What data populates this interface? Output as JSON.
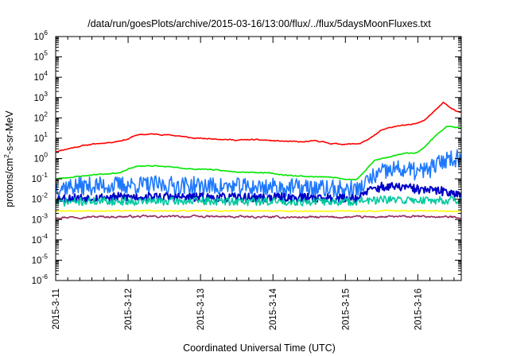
{
  "chart_data": {
    "type": "line",
    "title": "/data/run/goesPlots/archive/2015-03-16/13:00/flux/../flux/5daysMoonFluxes.txt",
    "xlabel": "Coordinated Universal Time (UTC)",
    "ylabel_parts": {
      "pre": "protons/cm",
      "sup": "2",
      "post": "-s-sr-MeV"
    },
    "yscale": "log",
    "ylim_exp": [
      -6,
      6
    ],
    "ytick_base": "10",
    "ytick_exponents": [
      "6",
      "5",
      "4",
      "3",
      "2",
      "1",
      "0",
      "-1",
      "-2",
      "-3",
      "-4",
      "-5",
      "-6"
    ],
    "xlim_days": [
      0,
      5.6
    ],
    "xticks": [
      {
        "t": 0,
        "label": "2015-3-11"
      },
      {
        "t": 1,
        "label": "2015-3-12"
      },
      {
        "t": 2,
        "label": "2015-3-13"
      },
      {
        "t": 3,
        "label": "2015-3-14"
      },
      {
        "t": 4,
        "label": "2015-3-15"
      },
      {
        "t": 5,
        "label": "2015-3-16"
      }
    ],
    "grid": false,
    "legend": "none",
    "series": [
      {
        "color": "#ff0000",
        "noise": 0.05,
        "seed": 11,
        "points": [
          [
            0,
            2.2
          ],
          [
            0.2,
            3.2
          ],
          [
            0.4,
            4.5
          ],
          [
            0.6,
            5.5
          ],
          [
            0.8,
            6.5
          ],
          [
            1.0,
            9.0
          ],
          [
            1.1,
            14
          ],
          [
            1.3,
            16
          ],
          [
            1.5,
            15
          ],
          [
            1.7,
            13
          ],
          [
            1.9,
            10
          ],
          [
            2.1,
            9.5
          ],
          [
            2.3,
            9.0
          ],
          [
            2.5,
            8.0
          ],
          [
            2.7,
            8.5
          ],
          [
            2.9,
            8.0
          ],
          [
            3.0,
            7.5
          ],
          [
            3.2,
            7.0
          ],
          [
            3.4,
            6.5
          ],
          [
            3.6,
            7.5
          ],
          [
            3.8,
            5.5
          ],
          [
            4.0,
            5.0
          ],
          [
            4.2,
            5.5
          ],
          [
            4.35,
            10
          ],
          [
            4.5,
            25
          ],
          [
            4.7,
            40
          ],
          [
            4.9,
            45
          ],
          [
            5.0,
            60
          ],
          [
            5.1,
            80
          ],
          [
            5.2,
            180
          ],
          [
            5.3,
            400
          ],
          [
            5.35,
            600
          ],
          [
            5.45,
            300
          ],
          [
            5.55,
            200
          ],
          [
            5.6,
            180
          ]
        ]
      },
      {
        "color": "#00e600",
        "noise": 0.05,
        "seed": 23,
        "points": [
          [
            0,
            0.1
          ],
          [
            0.3,
            0.13
          ],
          [
            0.6,
            0.17
          ],
          [
            0.9,
            0.2
          ],
          [
            1.0,
            0.3
          ],
          [
            1.1,
            0.4
          ],
          [
            1.3,
            0.45
          ],
          [
            1.5,
            0.4
          ],
          [
            1.7,
            0.35
          ],
          [
            1.9,
            0.3
          ],
          [
            2.1,
            0.3
          ],
          [
            2.3,
            0.25
          ],
          [
            2.6,
            0.22
          ],
          [
            2.9,
            0.2
          ],
          [
            3.2,
            0.15
          ],
          [
            3.5,
            0.13
          ],
          [
            3.8,
            0.12
          ],
          [
            4.0,
            0.1
          ],
          [
            4.15,
            0.09
          ],
          [
            4.25,
            0.2
          ],
          [
            4.4,
            0.8
          ],
          [
            4.6,
            1.2
          ],
          [
            4.8,
            1.8
          ],
          [
            5.0,
            2.0
          ],
          [
            5.1,
            4.0
          ],
          [
            5.2,
            9.0
          ],
          [
            5.3,
            20
          ],
          [
            5.4,
            40
          ],
          [
            5.5,
            35
          ],
          [
            5.6,
            30
          ]
        ]
      },
      {
        "color": "#1e78ff",
        "noise": 0.45,
        "seed": 37,
        "points": [
          [
            0,
            0.04
          ],
          [
            0.5,
            0.045
          ],
          [
            1.0,
            0.05
          ],
          [
            1.5,
            0.05
          ],
          [
            2.0,
            0.045
          ],
          [
            2.5,
            0.04
          ],
          [
            3.0,
            0.04
          ],
          [
            3.5,
            0.035
          ],
          [
            4.0,
            0.03
          ],
          [
            4.2,
            0.03
          ],
          [
            4.25,
            0.05
          ],
          [
            4.35,
            0.1
          ],
          [
            4.5,
            0.2
          ],
          [
            4.7,
            0.3
          ],
          [
            4.9,
            0.25
          ],
          [
            5.0,
            0.22
          ],
          [
            5.1,
            0.25
          ],
          [
            5.2,
            0.35
          ],
          [
            5.3,
            0.6
          ],
          [
            5.4,
            1.0
          ],
          [
            5.5,
            1.1
          ],
          [
            5.6,
            1.0
          ]
        ]
      },
      {
        "color": "#0000c8",
        "noise": 0.22,
        "seed": 53,
        "points": [
          [
            0,
            0.011
          ],
          [
            0.5,
            0.012
          ],
          [
            1.0,
            0.013
          ],
          [
            1.5,
            0.013
          ],
          [
            2.0,
            0.012
          ],
          [
            2.5,
            0.012
          ],
          [
            3.0,
            0.012
          ],
          [
            3.5,
            0.012
          ],
          [
            4.0,
            0.011
          ],
          [
            4.2,
            0.012
          ],
          [
            4.3,
            0.025
          ],
          [
            4.5,
            0.04
          ],
          [
            4.8,
            0.04
          ],
          [
            5.0,
            0.03
          ],
          [
            5.3,
            0.025
          ],
          [
            5.6,
            0.02
          ]
        ]
      },
      {
        "color": "#00c8a0",
        "noise": 0.2,
        "seed": 71,
        "points": [
          [
            0,
            0.007
          ],
          [
            0.5,
            0.008
          ],
          [
            1.0,
            0.008
          ],
          [
            1.5,
            0.008
          ],
          [
            2.0,
            0.008
          ],
          [
            2.5,
            0.0078
          ],
          [
            3.0,
            0.0078
          ],
          [
            3.5,
            0.0075
          ],
          [
            4.0,
            0.0075
          ],
          [
            4.5,
            0.009
          ],
          [
            5.0,
            0.009
          ],
          [
            5.6,
            0.009
          ]
        ]
      },
      {
        "color": "#ffff00",
        "noise": 0.06,
        "seed": 89,
        "points": [
          [
            0,
            0.0026
          ],
          [
            1.0,
            0.0027
          ],
          [
            2.0,
            0.0027
          ],
          [
            3.0,
            0.0026
          ],
          [
            4.0,
            0.0026
          ],
          [
            5.0,
            0.0027
          ],
          [
            5.6,
            0.0026
          ]
        ]
      },
      {
        "color": "#98285a",
        "noise": 0.1,
        "seed": 97,
        "points": [
          [
            0,
            0.0013
          ],
          [
            1.0,
            0.0014
          ],
          [
            2.0,
            0.0014
          ],
          [
            3.0,
            0.0013
          ],
          [
            4.0,
            0.0013
          ],
          [
            5.0,
            0.0014
          ],
          [
            5.6,
            0.0013
          ]
        ]
      }
    ]
  }
}
